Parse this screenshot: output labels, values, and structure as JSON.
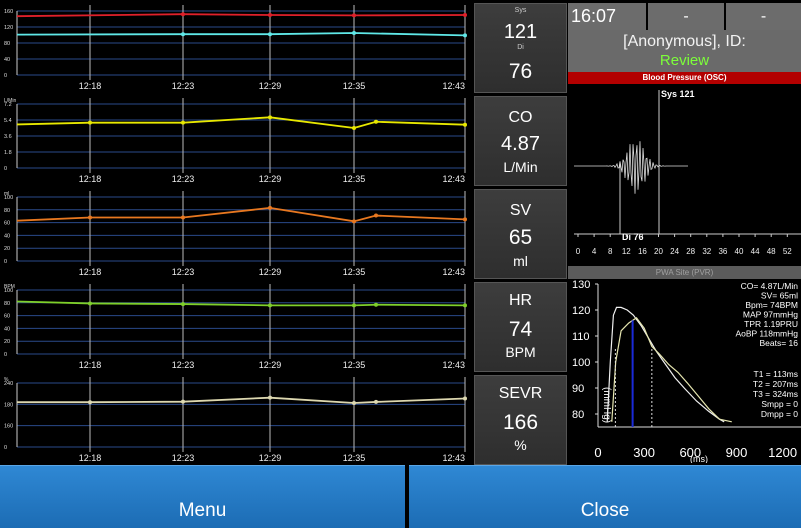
{
  "time": "16:07",
  "top_cells": [
    "-",
    "-"
  ],
  "patient": {
    "name": "[Anonymous], ID:",
    "status": "Review"
  },
  "x_ticks": [
    "12:18",
    "12:23",
    "12:29",
    "12:35",
    "12:43"
  ],
  "trends": [
    {
      "key": "bp",
      "y_unit_label": "",
      "y_ticks": [
        "160",
        "120",
        "80",
        "40",
        "0"
      ],
      "series": [
        {
          "color": "#e0202a",
          "values": [
            147,
            152,
            150,
            149,
            150
          ]
        },
        {
          "color": "#5fe8e8",
          "values": [
            101,
            102,
            102,
            105,
            99
          ]
        }
      ]
    },
    {
      "key": "co",
      "y_unit_label": "L/Min",
      "y_ticks": [
        "7.2",
        "5.4",
        "3.6",
        "1.8",
        "0"
      ],
      "series": [
        {
          "color": "#e8e800",
          "values": [
            4.9,
            5.1,
            5.1,
            5.7,
            4.5,
            5.2,
            4.87
          ]
        }
      ]
    },
    {
      "key": "sv",
      "y_unit_label": "ml",
      "y_ticks": [
        "100",
        "80",
        "60",
        "40",
        "20",
        "0"
      ],
      "series": [
        {
          "color": "#e87820",
          "values": [
            63,
            68,
            68,
            83,
            62,
            71,
            65
          ]
        }
      ]
    },
    {
      "key": "hr",
      "y_unit_label": "BPM",
      "y_ticks": [
        "100",
        "80",
        "60",
        "40",
        "20",
        "0"
      ],
      "series": [
        {
          "color": "#7fd02a",
          "values": [
            82,
            79,
            78,
            76,
            76,
            77,
            76
          ]
        }
      ]
    },
    {
      "key": "sevr",
      "y_unit_label": "%",
      "y_ticks": [
        "240",
        "180",
        "160",
        "0"
      ],
      "series": [
        {
          "color": "#ddd8b0",
          "values": [
            168,
            168,
            170,
            185,
            165,
            169,
            182
          ]
        }
      ]
    }
  ],
  "readouts": {
    "bp": {
      "label": "Sys",
      "value": "121",
      "sub_label": "Di",
      "sub_value": "76"
    },
    "co": {
      "label": "CO",
      "value": "4.87",
      "unit": "L/Min"
    },
    "sv": {
      "label": "SV",
      "value": "65",
      "unit": "ml"
    },
    "hr": {
      "label": "HR",
      "value": "74",
      "unit": "BPM"
    },
    "sevr": {
      "label": "SEVR",
      "value": "166",
      "unit": "%"
    }
  },
  "osc": {
    "title": "Blood Pressure (OSC)",
    "sys_label": "Sys 121",
    "di_label": "Di 76",
    "x_ticks": [
      "0",
      "4",
      "8",
      "12",
      "16",
      "20",
      "24",
      "28",
      "32",
      "36",
      "40",
      "44",
      "48",
      "52"
    ]
  },
  "pwa": {
    "title": "PWA Site (PVR)",
    "y_ticks": [
      "130",
      "120",
      "110",
      "100",
      "90",
      "80"
    ],
    "x_ticks": [
      "0",
      "300",
      "600",
      "900",
      "1200"
    ],
    "y_label": "(mmHg)",
    "x_label": "(ms)",
    "stats": [
      "CO= 4.87L/Min",
      "SV= 65ml",
      "Bpm= 74BPM",
      "MAP 97mmHg",
      "TPR 1.19PRU",
      "AoBP 118mmHg",
      "Beats= 16"
    ],
    "timing": [
      "T1 = 113ms",
      "T2 = 207ms",
      "T3 = 324ms",
      "Smpp = 0",
      "Dmpp = 0"
    ]
  },
  "buttons": {
    "menu": "Menu",
    "close": "Close"
  }
}
